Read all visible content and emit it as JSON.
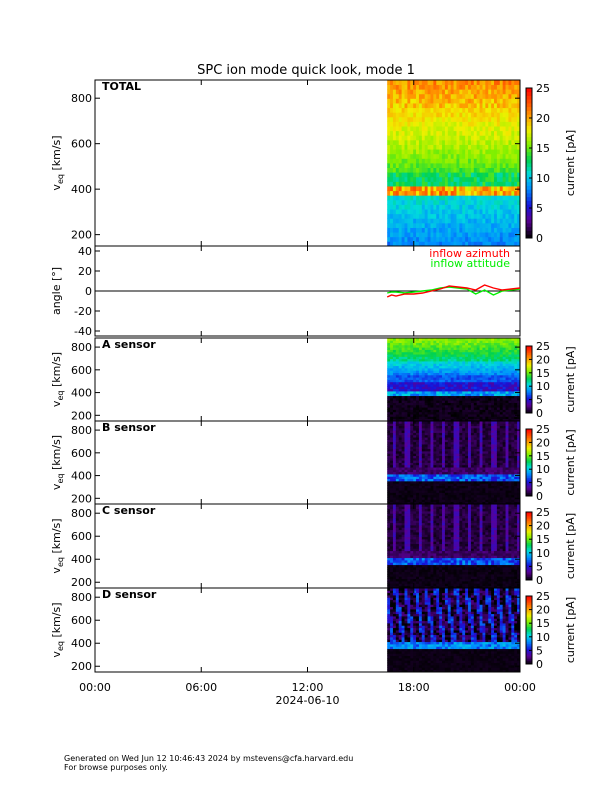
{
  "title": "SPC ion mode quick look, mode 1",
  "footer": {
    "generated": "Generated on Wed Jun 12 10:46:43 2024 by mstevens@cfa.harvard.edu",
    "note": "For browse purposes only."
  },
  "chart_data": [
    {
      "type": "heatmap",
      "panel_label": "TOTAL",
      "ylabel_main": "v",
      "ylabel_sub": "eq",
      "ylabel_unit": "[km/s]",
      "yticks": [
        "200",
        "400",
        "600",
        "800"
      ],
      "ytick_values": [
        200,
        400,
        600,
        800
      ],
      "ylim": [
        150,
        880
      ],
      "colorbar": {
        "label": "current [pA]",
        "ticks": [
          "0",
          "5",
          "10",
          "15",
          "20",
          "25"
        ],
        "range": [
          0,
          25
        ]
      },
      "data_start_hour": 16.5,
      "profile": "total"
    },
    {
      "type": "line",
      "ylabel": "angle [°]",
      "yticks": [
        "40",
        "20",
        "0",
        "-20",
        "-40"
      ],
      "ytick_values": [
        40,
        20,
        0,
        -20,
        -40
      ],
      "ylim": [
        -45,
        45
      ],
      "zero_line": true,
      "series": [
        {
          "name": "inflow azimuth",
          "color": "#ff0000",
          "x": [
            16.5,
            16.75,
            17.0,
            17.5,
            18.0,
            18.5,
            19.0,
            19.5,
            20.0,
            20.5,
            21.0,
            21.5,
            22.0,
            22.5,
            23.0,
            23.5,
            24.0
          ],
          "y": [
            -6,
            -4,
            -5,
            -3,
            -3,
            -2,
            0,
            2,
            5,
            4,
            3,
            1,
            6,
            3,
            1,
            2,
            3
          ]
        },
        {
          "name": "inflow attitude",
          "color": "#00ee00",
          "x": [
            16.5,
            16.75,
            17.0,
            17.5,
            18.0,
            18.5,
            19.0,
            19.5,
            20.0,
            20.5,
            21.0,
            21.5,
            22.0,
            22.5,
            23.0,
            23.5,
            24.0
          ],
          "y": [
            -2,
            -1,
            -1,
            -2,
            -1,
            0,
            1,
            3,
            4,
            3,
            2,
            -3,
            1,
            -4,
            0,
            1,
            2
          ]
        }
      ]
    },
    {
      "type": "heatmap",
      "panel_label": "A sensor",
      "ylabel_main": "v",
      "ylabel_sub": "eq",
      "ylabel_unit": "[km/s]",
      "yticks": [
        "200",
        "400",
        "600",
        "800"
      ],
      "ytick_values": [
        200,
        400,
        600,
        800
      ],
      "ylim": [
        150,
        880
      ],
      "colorbar": {
        "label": "current [pA]",
        "ticks": [
          "0",
          "5",
          "10",
          "15",
          "20",
          "25"
        ],
        "range": [
          0,
          25
        ]
      },
      "data_start_hour": 16.5,
      "profile": "A"
    },
    {
      "type": "heatmap",
      "panel_label": "B sensor",
      "ylabel_main": "v",
      "ylabel_sub": "eq",
      "ylabel_unit": "[km/s]",
      "yticks": [
        "200",
        "400",
        "600",
        "800"
      ],
      "ytick_values": [
        200,
        400,
        600,
        800
      ],
      "ylim": [
        150,
        880
      ],
      "colorbar": {
        "label": "current [pA]",
        "ticks": [
          "0",
          "5",
          "10",
          "15",
          "20",
          "25"
        ],
        "range": [
          0,
          25
        ]
      },
      "data_start_hour": 16.5,
      "profile": "BC"
    },
    {
      "type": "heatmap",
      "panel_label": "C sensor",
      "ylabel_main": "v",
      "ylabel_sub": "eq",
      "ylabel_unit": "[km/s]",
      "yticks": [
        "200",
        "400",
        "600",
        "800"
      ],
      "ytick_values": [
        200,
        400,
        600,
        800
      ],
      "ylim": [
        150,
        880
      ],
      "colorbar": {
        "label": "current [pA]",
        "ticks": [
          "0",
          "5",
          "10",
          "15",
          "20",
          "25"
        ],
        "range": [
          0,
          25
        ]
      },
      "data_start_hour": 16.5,
      "profile": "BC"
    },
    {
      "type": "heatmap",
      "panel_label": "D sensor",
      "ylabel_main": "v",
      "ylabel_sub": "eq",
      "ylabel_unit": "[km/s]",
      "yticks": [
        "200",
        "400",
        "600",
        "800"
      ],
      "ytick_values": [
        200,
        400,
        600,
        800
      ],
      "ylim": [
        150,
        880
      ],
      "colorbar": {
        "label": "current [pA]",
        "ticks": [
          "0",
          "5",
          "10",
          "15",
          "20",
          "25"
        ],
        "range": [
          0,
          25
        ]
      },
      "data_start_hour": 16.5,
      "profile": "D"
    }
  ],
  "x_axis": {
    "tick_labels": [
      "00:00",
      "06:00",
      "12:00",
      "18:00",
      "00:00"
    ],
    "tick_hours": [
      0,
      6,
      12,
      18,
      24
    ],
    "xlim": [
      0,
      24
    ],
    "date_label": "2024-06-10"
  }
}
